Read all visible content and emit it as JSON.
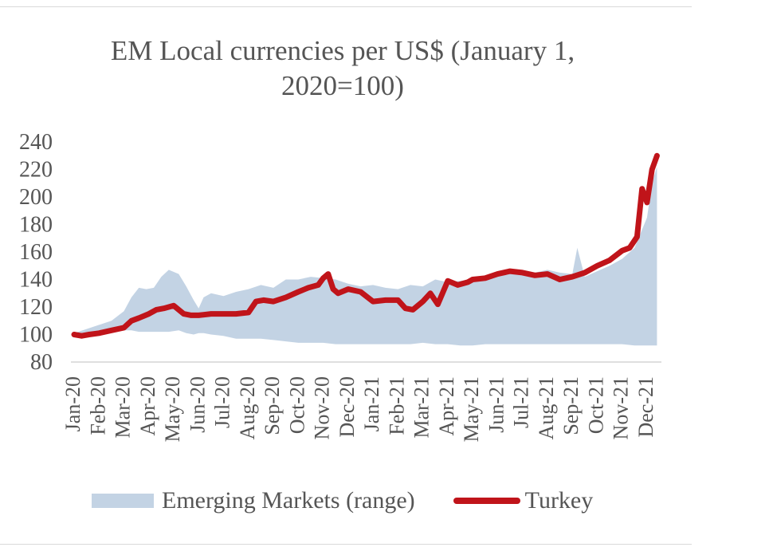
{
  "chart_data": {
    "type": "area",
    "title_lines": [
      "EM Local currencies per US$  (January 1,",
      "2020=100)"
    ],
    "title": "EM Local currencies per US$  (January 1, 2020=100)",
    "xlabel": "",
    "ylabel": "",
    "ylim": [
      80,
      240
    ],
    "yticks": [
      80,
      100,
      120,
      140,
      160,
      180,
      200,
      220,
      240
    ],
    "x_tick_labels": [
      "Jan-20",
      "Feb-20",
      "Mar-20",
      "Apr-20",
      "May-20",
      "Jun-20",
      "Jul-20",
      "Aug-20",
      "Sep-20",
      "Oct-20",
      "Nov-20",
      "Dec-20",
      "Jan-21",
      "Feb-21",
      "Mar-21",
      "Apr-21",
      "May-21",
      "Jun-21",
      "Jul-21",
      "Aug-21",
      "Sep-21",
      "Oct-21",
      "Nov-21",
      "Dec-21"
    ],
    "grid": false,
    "legend_position": "bottom",
    "series": [
      {
        "name": "Emerging Markets (range)",
        "kind": "range-area",
        "color": "#c3d3e4",
        "x": [
          0,
          0.5,
          1,
          1.5,
          2,
          2.3,
          2.6,
          2.9,
          3.2,
          3.5,
          3.8,
          4.2,
          4.5,
          4.8,
          5,
          5.2,
          5.5,
          6,
          6.5,
          7,
          7.5,
          8,
          8.5,
          9,
          9.5,
          10,
          10.5,
          11,
          11.5,
          12,
          12.5,
          13,
          13.5,
          14,
          14.5,
          15,
          15.5,
          16,
          16.5,
          17,
          17.5,
          18,
          18.5,
          19,
          19.5,
          20,
          20.2,
          20.5,
          21,
          21.5,
          22,
          22.5,
          23,
          23.2,
          23.4
        ],
        "upper": [
          101,
          104,
          107,
          110,
          117,
          127,
          134,
          133,
          134,
          142,
          147,
          144,
          135,
          125,
          119,
          127,
          130,
          128,
          131,
          133,
          136,
          134,
          140,
          140,
          142,
          141,
          140,
          137,
          135,
          136,
          134,
          133,
          136,
          135,
          140,
          138,
          139,
          140,
          142,
          144,
          146,
          146,
          145,
          147,
          145,
          144,
          163,
          142,
          146,
          150,
          155,
          163,
          185,
          210,
          222
        ],
        "lower": [
          100,
          100,
          101,
          102,
          103,
          103,
          102,
          102,
          102,
          102,
          102,
          103,
          101,
          100,
          101,
          101,
          100,
          99,
          97,
          97,
          97,
          96,
          95,
          94,
          94,
          94,
          93,
          93,
          93,
          93,
          93,
          93,
          93,
          94,
          93,
          93,
          92,
          92,
          93,
          93,
          93,
          93,
          93,
          93,
          93,
          93,
          93,
          93,
          93,
          93,
          93,
          92,
          92,
          92,
          92
        ]
      },
      {
        "name": "Turkey",
        "kind": "line",
        "color": "#c0141a",
        "x": [
          0,
          0.3,
          0.6,
          1,
          1.5,
          2,
          2.3,
          2.6,
          3,
          3.3,
          3.6,
          4,
          4.4,
          4.7,
          5,
          5.5,
          6,
          6.5,
          7,
          7.3,
          7.6,
          8,
          8.5,
          9,
          9.4,
          9.8,
          10,
          10.2,
          10.4,
          10.6,
          11,
          11.5,
          12,
          12.5,
          13,
          13.3,
          13.6,
          14,
          14.3,
          14.6,
          15,
          15.4,
          15.8,
          16,
          16.5,
          17,
          17.5,
          18,
          18.5,
          19,
          19.5,
          20,
          20.5,
          21,
          21.5,
          22,
          22.3,
          22.6,
          22.8,
          23,
          23.2,
          23.4
        ],
        "y": [
          100,
          99,
          100,
          101,
          103,
          105,
          110,
          112,
          115,
          118,
          119,
          121,
          115,
          114,
          114,
          115,
          115,
          115,
          116,
          124,
          125,
          124,
          127,
          131,
          134,
          136,
          141,
          144,
          133,
          130,
          133,
          131,
          124,
          125,
          125,
          119,
          118,
          124,
          130,
          122,
          139,
          136,
          138,
          140,
          141,
          144,
          146,
          145,
          143,
          144,
          140,
          142,
          145,
          150,
          154,
          161,
          163,
          171,
          206,
          196,
          220,
          230
        ]
      }
    ]
  }
}
